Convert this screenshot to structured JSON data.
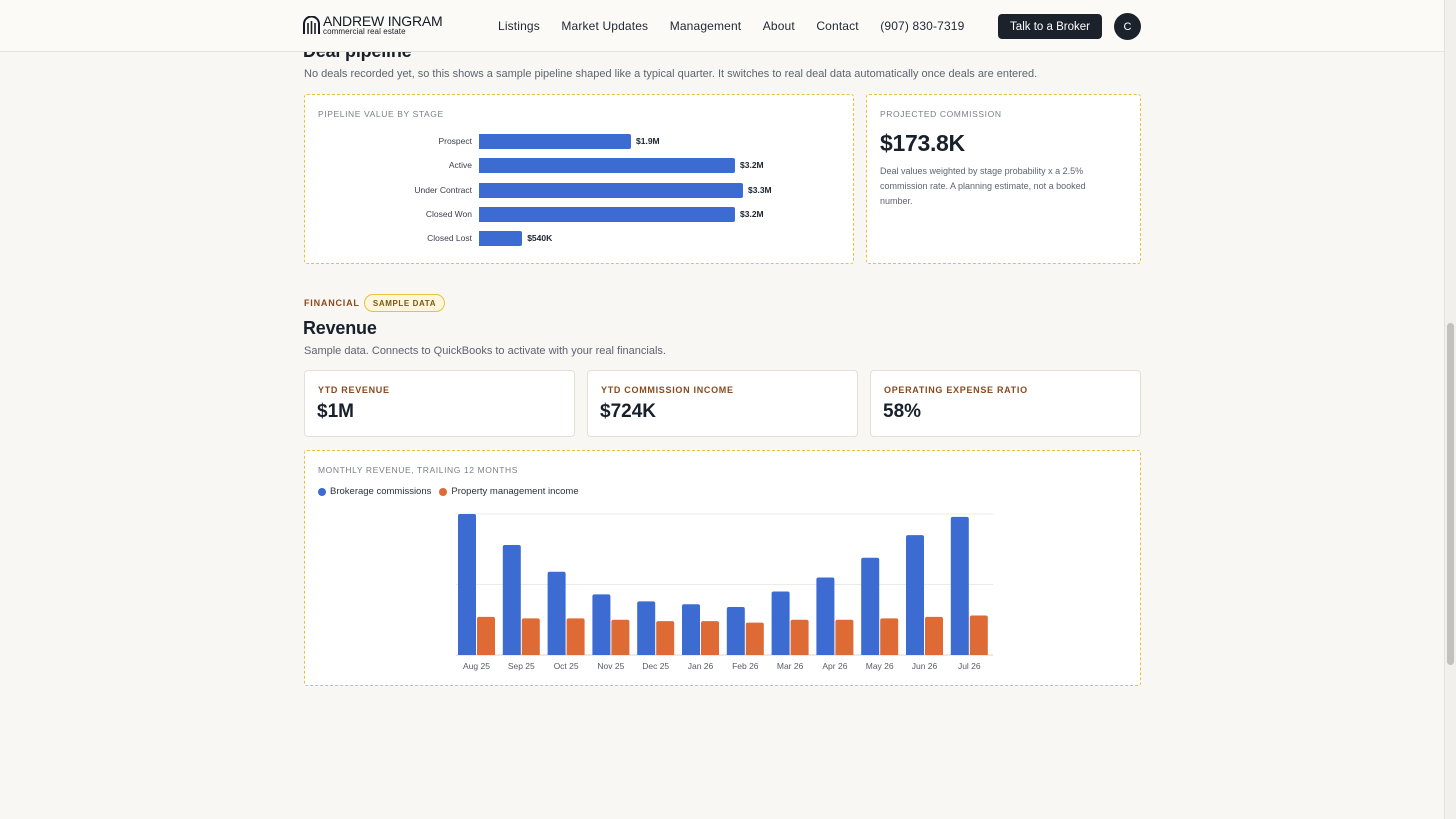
{
  "header": {
    "logo_name": "ANDREW INGRAM",
    "logo_tagline": "commercial real estate",
    "nav": [
      "Listings",
      "Market Updates",
      "Management",
      "About",
      "Contact"
    ],
    "phone": "(907) 830-7319",
    "cta": "Talk to a Broker",
    "avatar_initial": "C"
  },
  "pipeline": {
    "title": "Deal pipeline",
    "description": "No deals recorded yet, so this shows a sample pipeline shaped like a typical quarter. It switches to real deal data automatically once deals are entered.",
    "chart_label": "PIPELINE VALUE BY STAGE",
    "commission_label": "PROJECTED COMMISSION",
    "commission_value": "$173.8K",
    "commission_note": "Deal values weighted by stage probability x a 2.5% commission rate. A planning estimate, not a booked number."
  },
  "financial": {
    "eyebrow": "FINANCIAL",
    "badge": "SAMPLE DATA",
    "title": "Revenue",
    "description": "Sample data. Connects to QuickBooks to activate with your real financials.",
    "kpis": [
      {
        "label": "YTD REVENUE",
        "value": "$1M"
      },
      {
        "label": "YTD COMMISSION INCOME",
        "value": "$724K"
      },
      {
        "label": "OPERATING EXPENSE RATIO",
        "value": "58%"
      }
    ],
    "chart_label": "MONTHLY REVENUE, TRAILING 12 MONTHS"
  },
  "colors": {
    "brokerage": "#3c6bd1",
    "management": "#de6a35",
    "accent_dashed": "#e6c23e"
  },
  "chart_data": [
    {
      "type": "bar",
      "orientation": "horizontal",
      "categories": [
        "Prospect",
        "Active",
        "Under Contract",
        "Closed Won",
        "Closed Lost"
      ],
      "values": [
        1.9,
        3.2,
        3.3,
        3.2,
        0.54
      ],
      "units": "$M",
      "data_labels": [
        "$1.9M",
        "$3.2M",
        "$3.3M",
        "$3.2M",
        "$540K"
      ],
      "xlim": [
        0,
        4
      ]
    },
    {
      "type": "bar",
      "categories": [
        "Aug 25",
        "Sep 25",
        "Oct 25",
        "Nov 25",
        "Dec 25",
        "Jan 26",
        "Feb 26",
        "Mar 26",
        "Apr 26",
        "May 26",
        "Jun 26",
        "Jul 26"
      ],
      "series": [
        {
          "name": "Brokerage commissions",
          "values": [
            100,
            78,
            59,
            43,
            38,
            36,
            34,
            45,
            55,
            69,
            85,
            98
          ]
        },
        {
          "name": "Property management income",
          "values": [
            27,
            26,
            26,
            25,
            24,
            24,
            23,
            25,
            25,
            26,
            27,
            28
          ]
        }
      ],
      "ylim": [
        0,
        100
      ],
      "grid": true,
      "legend": "top-left"
    }
  ]
}
